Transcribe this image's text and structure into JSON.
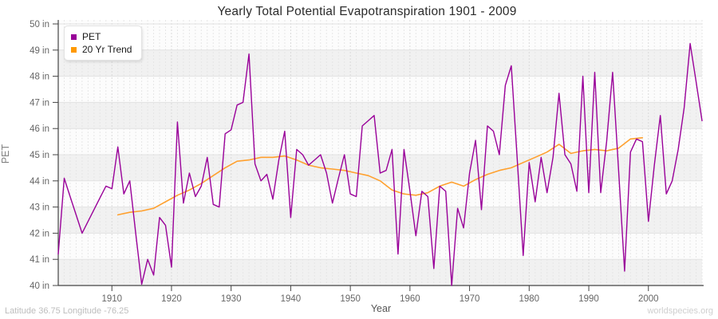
{
  "title": "Yearly Total Potential Evapotranspiration 1901 - 2009",
  "footer": {
    "left": "Latitude 36.75 Longitude -76.25",
    "right": "worldspecies.org"
  },
  "legend": [
    {
      "label": "PET",
      "color": "#990099"
    },
    {
      "label": "20 Yr Trend",
      "color": "#ff9900"
    }
  ],
  "y_axis": {
    "label": "PET",
    "min": 40,
    "max": 50,
    "tick_step": 1,
    "unit_suffix": " in"
  },
  "x_axis": {
    "label": "Year",
    "ticks": [
      1910,
      1920,
      1930,
      1940,
      1950,
      1960,
      1970,
      1980,
      1990,
      2000
    ]
  },
  "colors": {
    "pet_line": "#990099",
    "trend_line": "#ffa02e",
    "axis": "#444444",
    "band": "#f1f1f1",
    "plot_bg": "#fcfcfc",
    "grid_h": "#e2e2e2",
    "grid_v": "#e6e6e6",
    "grid_v_decade": "#d9d9d9",
    "tick_text": "#666666"
  },
  "chart_data": {
    "type": "line",
    "title": "Yearly Total Potential Evapotranspiration 1901 - 2009",
    "xlabel": "Year",
    "ylabel": "PET",
    "xlim": [
      1901,
      2009
    ],
    "ylim": [
      40,
      50
    ],
    "grid": true,
    "legend_position": "top-left",
    "series": [
      {
        "name": "PET",
        "color": "#990099",
        "x_start": 1901,
        "x_step": 1,
        "values": [
          41.2,
          44.1,
          43.4,
          42.7,
          42.0,
          42.45,
          42.9,
          43.35,
          43.8,
          43.7,
          45.3,
          43.5,
          44.0,
          42.0,
          40.05,
          41.0,
          40.4,
          42.6,
          42.3,
          40.7,
          46.25,
          43.15,
          44.3,
          43.4,
          43.8,
          44.9,
          43.1,
          43.0,
          45.8,
          45.95,
          46.9,
          47.0,
          48.85,
          44.65,
          44.0,
          44.25,
          43.3,
          44.8,
          45.9,
          42.6,
          45.2,
          45.0,
          44.6,
          44.8,
          45.0,
          44.3,
          43.15,
          44.1,
          45.0,
          43.5,
          43.4,
          46.1,
          46.3,
          46.5,
          44.3,
          44.4,
          45.2,
          41.2,
          45.2,
          43.6,
          41.9,
          43.6,
          43.4,
          40.65,
          43.8,
          43.6,
          40.0,
          42.95,
          42.2,
          44.3,
          45.55,
          42.9,
          46.1,
          45.9,
          45.0,
          47.65,
          48.4,
          44.8,
          41.15,
          44.7,
          43.2,
          44.9,
          43.55,
          44.9,
          47.35,
          45.0,
          44.65,
          43.6,
          48.0,
          43.55,
          48.15,
          43.55,
          45.5,
          48.15,
          44.4,
          40.55,
          45.1,
          45.6,
          45.5,
          42.45,
          44.6,
          46.5,
          43.5,
          44.0,
          45.2,
          46.8,
          49.25,
          47.8,
          46.3
        ]
      },
      {
        "name": "20 Yr Trend",
        "color": "#ffa02e",
        "x_start": 1911,
        "x_step": 2,
        "values": [
          42.7,
          42.8,
          42.85,
          42.95,
          43.2,
          43.45,
          43.65,
          43.9,
          44.2,
          44.5,
          44.75,
          44.8,
          44.9,
          44.9,
          44.95,
          44.8,
          44.6,
          44.5,
          44.45,
          44.4,
          44.3,
          44.2,
          44.0,
          43.65,
          43.5,
          43.45,
          43.55,
          43.8,
          43.95,
          43.8,
          44.05,
          44.25,
          44.4,
          44.5,
          44.7,
          44.9,
          45.1,
          45.4,
          45.05,
          45.15,
          45.2,
          45.15,
          45.25,
          45.6,
          45.65
        ]
      }
    ]
  }
}
